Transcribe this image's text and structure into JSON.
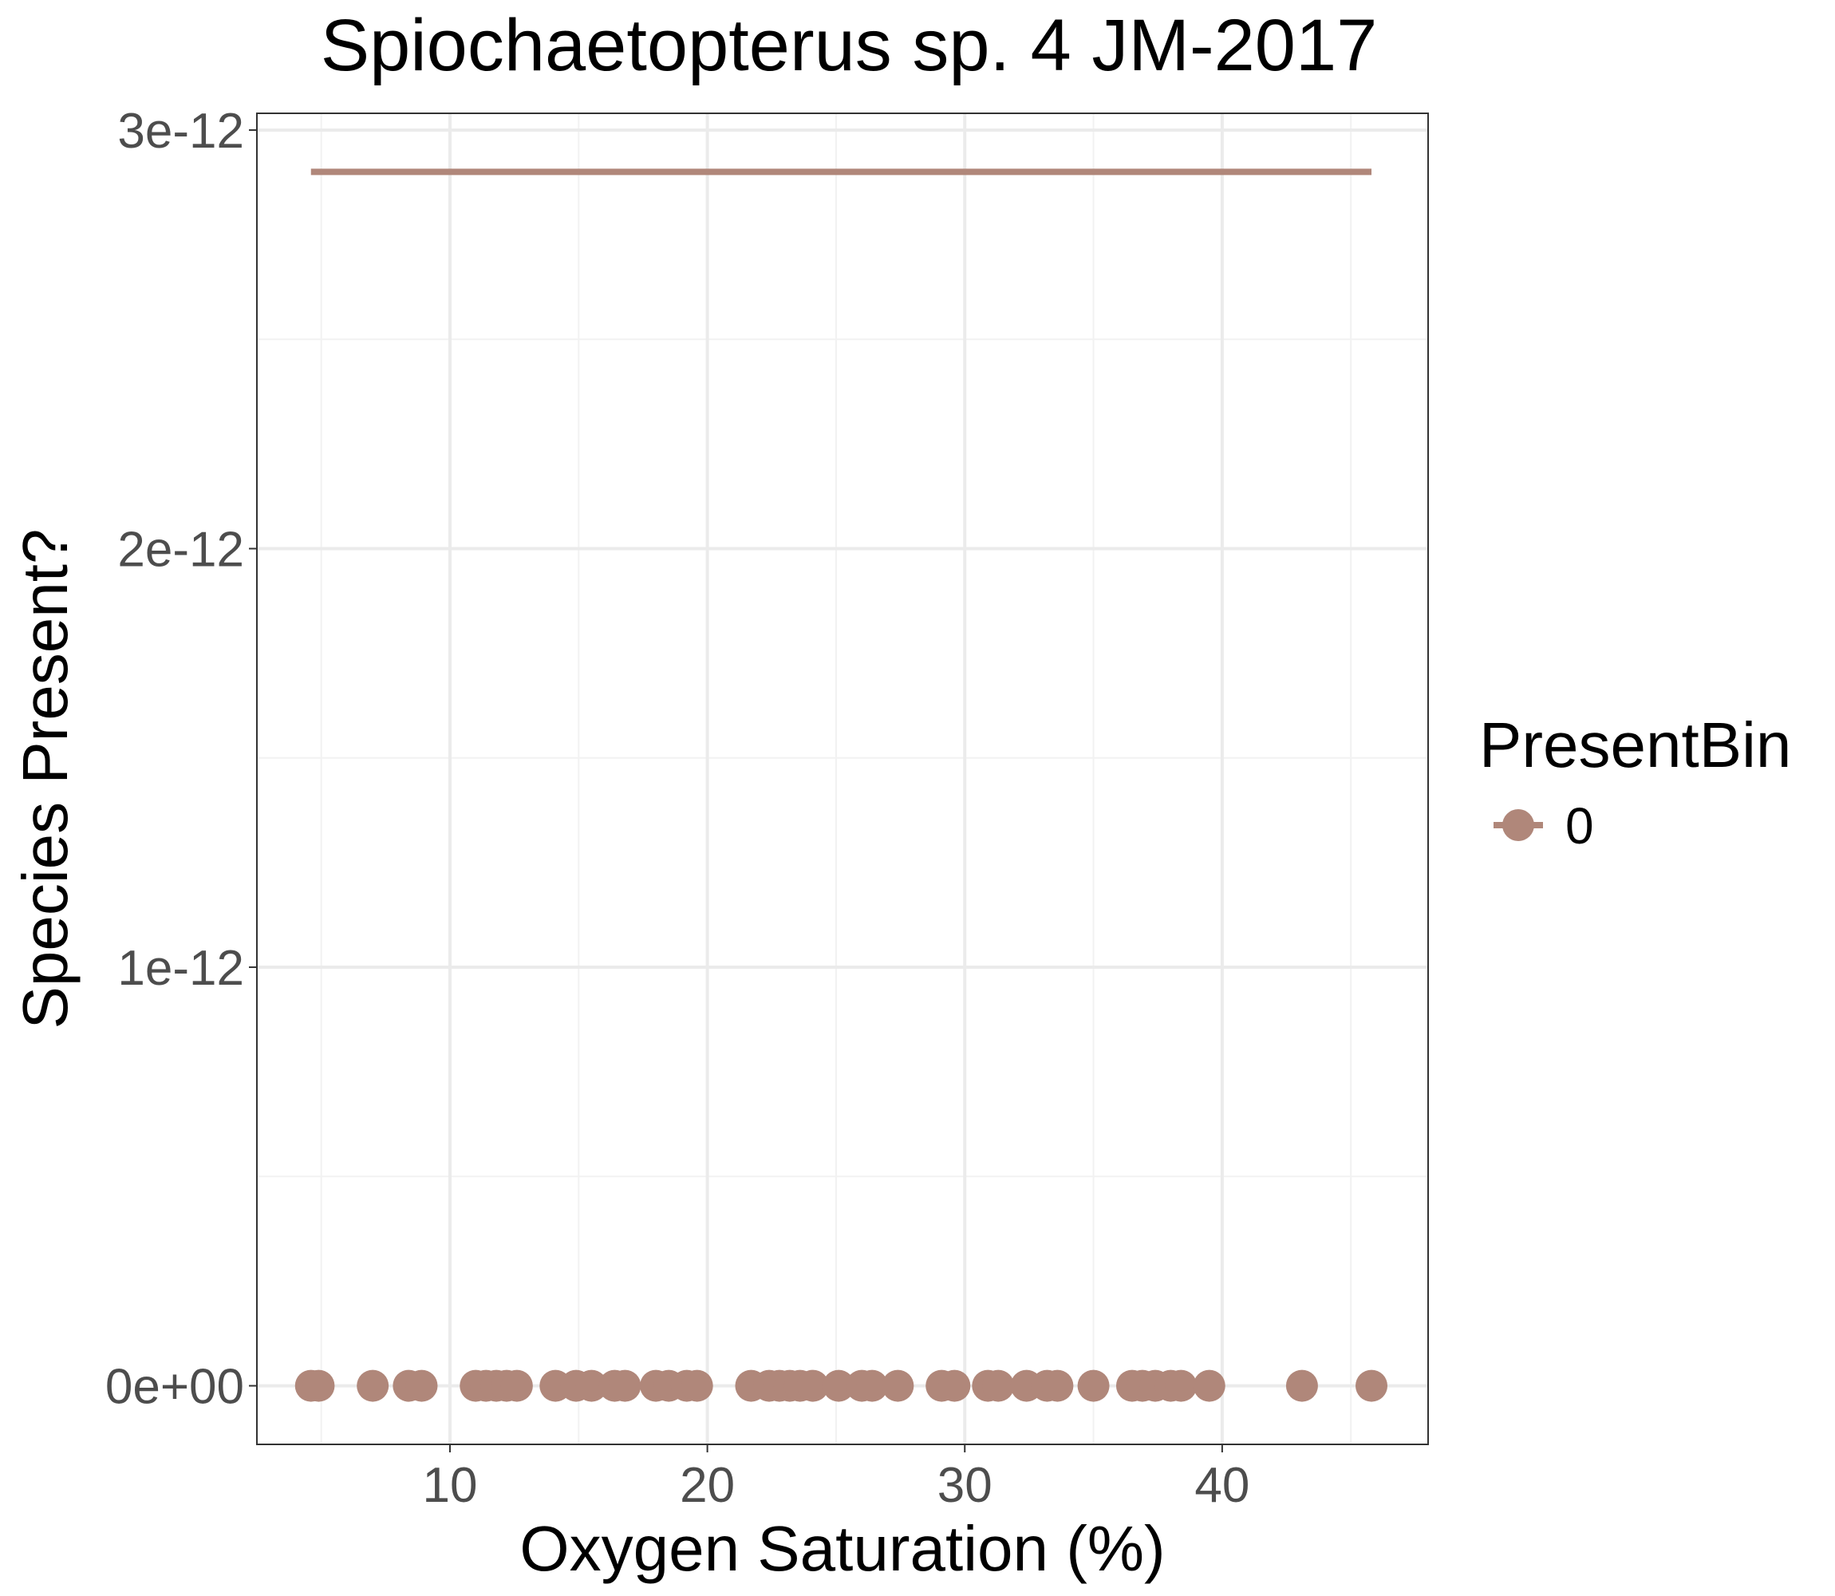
{
  "chart_data": {
    "type": "scatter",
    "title": "Spiochaetopterus sp. 4 JM-2017",
    "xlabel": "Oxygen Saturation (%)",
    "ylabel": "Species Present?",
    "xlim": [
      2.5,
      48
    ],
    "ylim": [
      -1.4e-13,
      3.04e-12
    ],
    "x_ticks": [
      10,
      20,
      30,
      40
    ],
    "x_tick_labels": [
      "10",
      "20",
      "30",
      "40"
    ],
    "x_minor_ticks": [
      5,
      15,
      25,
      35,
      45
    ],
    "y_ticks": [
      0,
      1e-12,
      2e-12,
      3e-12
    ],
    "y_tick_labels": [
      "0e+00",
      "1e-12",
      "2e-12",
      "3e-12"
    ],
    "y_minor_ticks": [
      5e-13,
      1.5e-12,
      2.5e-12
    ],
    "grid": true,
    "legend": {
      "title": "PresentBin",
      "position": "right",
      "entries": [
        {
          "label": "0",
          "color": "#b0877a"
        }
      ]
    },
    "series": [
      {
        "name": "0",
        "color": "#b0877a",
        "points_y": 0,
        "x": [
          4.6,
          4.9,
          7.0,
          8.4,
          8.9,
          11.0,
          11.4,
          11.8,
          12.2,
          12.6,
          14.1,
          14.9,
          15.5,
          16.4,
          16.8,
          18.0,
          18.5,
          19.2,
          19.6,
          21.7,
          22.4,
          22.8,
          23.2,
          23.6,
          24.1,
          25.1,
          26.0,
          26.4,
          27.4,
          29.1,
          29.6,
          30.9,
          31.3,
          32.4,
          33.2,
          33.6,
          35.0,
          36.5,
          36.9,
          37.4,
          38.0,
          38.4,
          39.5,
          43.1,
          45.8
        ],
        "fit_line": {
          "x": [
            4.6,
            45.8
          ],
          "y": [
            2.9e-12,
            2.9e-12
          ]
        }
      }
    ]
  }
}
